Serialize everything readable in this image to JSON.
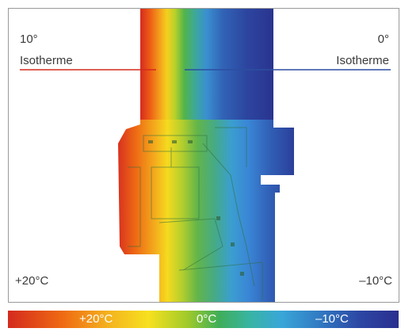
{
  "left_isotherm": {
    "value": "10°",
    "label": "Isotherme",
    "color": "#d42a1e"
  },
  "right_isotherm": {
    "value": "0°",
    "label": "Isotherme",
    "color": "#2c4ea0"
  },
  "corner_labels": {
    "warm_side": "+20°C",
    "cold_side": "–10°C"
  },
  "scale": {
    "warm": "+20°C",
    "zero": "0°C",
    "cold": "–10°C"
  },
  "colors": {
    "warm": "#d42a1e",
    "neutral": "#f7e11e",
    "mid": "#3fae58",
    "cold": "#2a2f8e"
  }
}
